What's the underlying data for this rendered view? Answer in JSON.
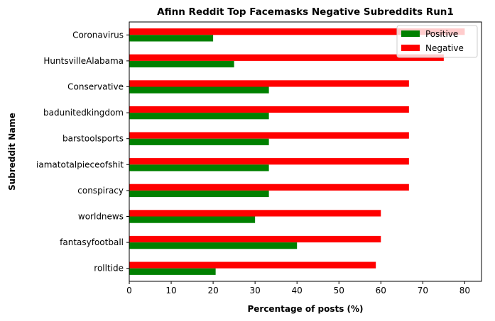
{
  "chart_data": {
    "type": "bar",
    "orientation": "horizontal",
    "title": "Afinn Reddit Top Facemasks Negative Subreddits Run1",
    "xlabel": "Percentage of posts (%)",
    "ylabel": "Subreddit Name",
    "xlim": [
      0,
      84
    ],
    "xticks": [
      "0",
      "10",
      "20",
      "30",
      "40",
      "50",
      "60",
      "70",
      "80"
    ],
    "categories": [
      "Coronavirus",
      "HuntsvilleAlabama",
      "Conservative",
      "badunitedkingdom",
      "barstoolsports",
      "iamatotalpieceofshit",
      "conspiracy",
      "worldnews",
      "fantasyfootball",
      "rolltide"
    ],
    "series": [
      {
        "name": "Positive",
        "color": "#008000",
        "values": [
          20.0,
          25.0,
          33.3,
          33.3,
          33.3,
          33.3,
          33.3,
          30.0,
          40.0,
          20.6
        ]
      },
      {
        "name": "Negative",
        "color": "#ff0000",
        "values": [
          80.0,
          75.0,
          66.7,
          66.7,
          66.7,
          66.7,
          66.7,
          60.0,
          60.0,
          58.8
        ]
      }
    ],
    "grid": false,
    "legend_position": "top-right"
  }
}
